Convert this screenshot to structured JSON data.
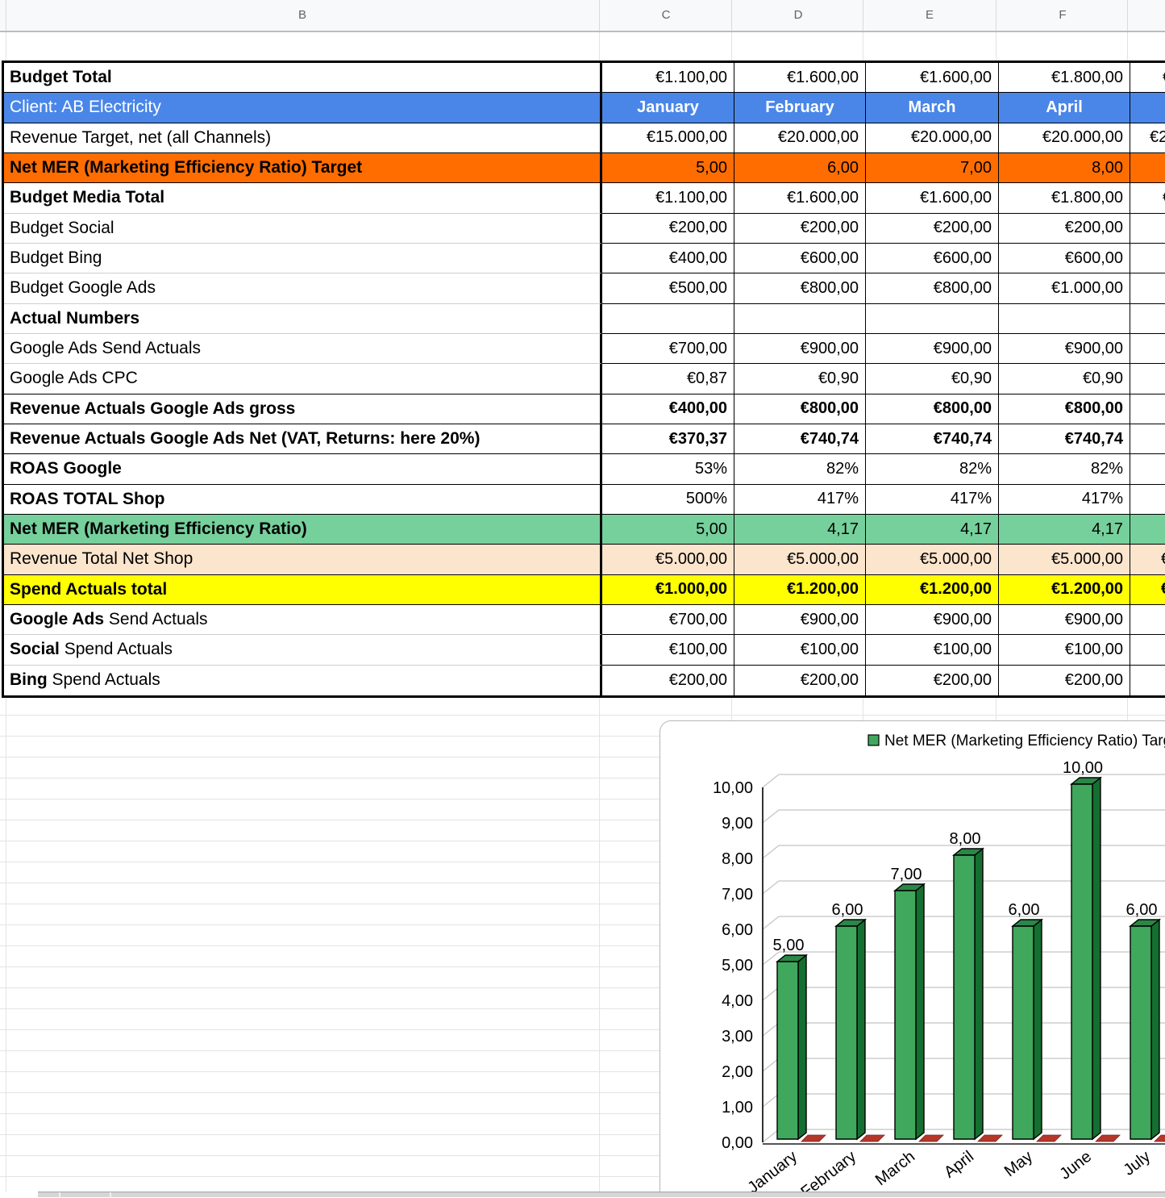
{
  "app": {
    "type": "spreadsheet"
  },
  "columns": {
    "letters": [
      "B",
      "C",
      "D",
      "E",
      "F"
    ]
  },
  "colors": {
    "header_blue": "#4a86e8",
    "highlight_orange": "#ff6d01",
    "highlight_green": "#76d09c",
    "highlight_peach": "#fce5cd",
    "highlight_yellow": "#ffff00",
    "bar_front": "#3fa85c",
    "bar_side": "#156f31",
    "bar_top": "#2a8747",
    "marker_red": "#b5372a"
  },
  "table": {
    "rows": [
      {
        "label": [
          {
            "t": "Budget Total",
            "b": true
          }
        ],
        "fill": "#ffffff",
        "tcolor": "#000000",
        "values": [
          "€1.100,00",
          "€1.600,00",
          "€1.600,00",
          "€1.800,00"
        ],
        "vbold": false,
        "center": false,
        "g": "€",
        "gpad": 40,
        "lb": "k"
      },
      {
        "label": [
          {
            "t": "Client: AB Electricity",
            "b": false
          }
        ],
        "fill": "#4a86e8",
        "tcolor": "#ffffff",
        "values": [
          "January",
          "February",
          "March",
          "April"
        ],
        "vbold": true,
        "center": true,
        "g": "",
        "gpad": 0,
        "lb": "k"
      },
      {
        "label": [
          {
            "t": "Revenue Target, net (all Channels)",
            "b": false
          }
        ],
        "fill": "#ffffff",
        "tcolor": "#000000",
        "values": [
          "€15.000,00",
          "€20.000,00",
          "€20.000,00",
          "€20.000,00"
        ],
        "vbold": false,
        "center": false,
        "g": "€2",
        "gpad": 24,
        "lb": "k"
      },
      {
        "label": [
          {
            "t": "Net MER (Marketing Efficiency Ratio) Target",
            "b": true
          }
        ],
        "fill": "#ff6d01",
        "tcolor": "#000000",
        "values": [
          "5,00",
          "6,00",
          "7,00",
          "8,00"
        ],
        "vbold": false,
        "center": false,
        "g": "",
        "gpad": 0,
        "lb": "k"
      },
      {
        "label": [
          {
            "t": "Budget Media Total",
            "b": true
          }
        ],
        "fill": "#ffffff",
        "tcolor": "#000000",
        "values": [
          "€1.100,00",
          "€1.600,00",
          "€1.600,00",
          "€1.800,00"
        ],
        "vbold": false,
        "center": false,
        "g": "€",
        "gpad": 40,
        "lb": "g"
      },
      {
        "label": [
          {
            "t": "Budget Social",
            "b": false
          }
        ],
        "fill": "#ffffff",
        "tcolor": "#000000",
        "values": [
          "€200,00",
          "€200,00",
          "€200,00",
          "€200,00"
        ],
        "vbold": false,
        "center": false,
        "g": "",
        "gpad": 0,
        "lb": "g"
      },
      {
        "label": [
          {
            "t": "Budget Bing",
            "b": false
          }
        ],
        "fill": "#ffffff",
        "tcolor": "#000000",
        "values": [
          "€400,00",
          "€600,00",
          "€600,00",
          "€600,00"
        ],
        "vbold": false,
        "center": false,
        "g": "",
        "gpad": 0,
        "lb": "g"
      },
      {
        "label": [
          {
            "t": "Budget Google Ads",
            "b": false
          }
        ],
        "fill": "#ffffff",
        "tcolor": "#000000",
        "values": [
          "€500,00",
          "€800,00",
          "€800,00",
          "€1.000,00"
        ],
        "vbold": false,
        "center": false,
        "g": "",
        "gpad": 0,
        "lb": "g"
      },
      {
        "label": [
          {
            "t": "Actual Numbers",
            "b": true
          }
        ],
        "fill": "#ffffff",
        "tcolor": "#000000",
        "values": [
          "",
          "",
          "",
          ""
        ],
        "vbold": false,
        "center": false,
        "g": "",
        "gpad": 0,
        "lb": "g"
      },
      {
        "label": [
          {
            "t": "Google Ads Send Actuals",
            "b": false
          }
        ],
        "fill": "#ffffff",
        "tcolor": "#000000",
        "values": [
          "€700,00",
          "€900,00",
          "€900,00",
          "€900,00"
        ],
        "vbold": false,
        "center": false,
        "g": "",
        "gpad": 0,
        "lb": "g"
      },
      {
        "label": [
          {
            "t": "Google Ads CPC",
            "b": false
          }
        ],
        "fill": "#ffffff",
        "tcolor": "#000000",
        "values": [
          "€0,87",
          "€0,90",
          "€0,90",
          "€0,90"
        ],
        "vbold": false,
        "center": false,
        "g": "",
        "gpad": 0,
        "lb": "k"
      },
      {
        "label": [
          {
            "t": "Revenue Actuals Google Ads gross",
            "b": true
          }
        ],
        "fill": "#ffffff",
        "tcolor": "#000000",
        "values": [
          "€400,00",
          "€800,00",
          "€800,00",
          "€800,00"
        ],
        "vbold": true,
        "center": false,
        "g": "",
        "gpad": 0,
        "lb": "k"
      },
      {
        "label": [
          {
            "t": "Revenue Actuals Google Ads Net (VAT, Returns: here 20%)",
            "b": true
          }
        ],
        "fill": "#ffffff",
        "tcolor": "#000000",
        "values": [
          "€370,37",
          "€740,74",
          "€740,74",
          "€740,74"
        ],
        "vbold": true,
        "center": false,
        "g": "",
        "gpad": 0,
        "lb": "k"
      },
      {
        "label": [
          {
            "t": "ROAS Google",
            "b": true
          }
        ],
        "fill": "#ffffff",
        "tcolor": "#000000",
        "values": [
          "53%",
          "82%",
          "82%",
          "82%"
        ],
        "vbold": false,
        "center": false,
        "g": "",
        "gpad": 0,
        "lb": "k"
      },
      {
        "label": [
          {
            "t": "ROAS TOTAL Shop",
            "b": true
          }
        ],
        "fill": "#ffffff",
        "tcolor": "#000000",
        "values": [
          "500%",
          "417%",
          "417%",
          "417%"
        ],
        "vbold": false,
        "center": false,
        "g": "",
        "gpad": 0,
        "lb": "k"
      },
      {
        "label": [
          {
            "t": "Net MER (Marketing Efficiency Ratio)",
            "b": true
          }
        ],
        "fill": "#76d09c",
        "tcolor": "#000000",
        "values": [
          "5,00",
          "4,17",
          "4,17",
          "4,17"
        ],
        "vbold": false,
        "center": false,
        "g": "",
        "gpad": 0,
        "lb": "k"
      },
      {
        "label": [
          {
            "t": "Revenue Total Net Shop",
            "b": false
          }
        ],
        "fill": "#fce5cd",
        "tcolor": "#000000",
        "values": [
          "€5.000,00",
          "€5.000,00",
          "€5.000,00",
          "€5.000,00"
        ],
        "vbold": false,
        "center": false,
        "g": "€",
        "gpad": 38,
        "lb": "k"
      },
      {
        "label": [
          {
            "t": "Spend Actuals total",
            "b": true
          }
        ],
        "fill": "#ffff00",
        "tcolor": "#000000",
        "values": [
          "€1.000,00",
          "€1.200,00",
          "€1.200,00",
          "€1.200,00"
        ],
        "vbold": true,
        "center": false,
        "g": "€",
        "gpad": 38,
        "lb": "k"
      },
      {
        "label": [
          {
            "t": "Google Ads",
            "b": true
          },
          {
            "t": " Send Actuals",
            "b": false
          }
        ],
        "fill": "#ffffff",
        "tcolor": "#000000",
        "values": [
          "€700,00",
          "€900,00",
          "€900,00",
          "€900,00"
        ],
        "vbold": false,
        "center": false,
        "g": "",
        "gpad": 0,
        "lb": "g"
      },
      {
        "label": [
          {
            "t": "Social",
            "b": true
          },
          {
            "t": " Spend Actuals",
            "b": false
          }
        ],
        "fill": "#ffffff",
        "tcolor": "#000000",
        "values": [
          "€100,00",
          "€100,00",
          "€100,00",
          "€100,00"
        ],
        "vbold": false,
        "center": false,
        "g": "",
        "gpad": 0,
        "lb": "g"
      },
      {
        "label": [
          {
            "t": "Bing",
            "b": true
          },
          {
            "t": " Spend Actuals",
            "b": false
          }
        ],
        "fill": "#ffffff",
        "tcolor": "#000000",
        "values": [
          "€200,00",
          "€200,00",
          "€200,00",
          "€200,00"
        ],
        "vbold": false,
        "center": false,
        "g": "",
        "gpad": 0,
        "lb": "n"
      }
    ]
  },
  "chart_data": {
    "type": "bar",
    "style": "3d",
    "title": "",
    "legend": [
      "Net MER (Marketing Efficiency Ratio) Targ"
    ],
    "legend_position": "top",
    "categories": [
      "January",
      "February",
      "March",
      "April",
      "May",
      "June",
      "July"
    ],
    "series": [
      {
        "name": "Net MER (Marketing Efficiency Ratio) Target",
        "values": [
          5.0,
          6.0,
          7.0,
          8.0,
          6.0,
          10.0,
          6.0
        ],
        "labels": [
          "5,00",
          "6,00",
          "7,00",
          "8,00",
          "6,00",
          "10,00",
          "6,00"
        ],
        "color": "#3fa85c"
      }
    ],
    "has_flat_red_marker_series": true,
    "ylim": [
      0,
      10
    ],
    "yticks": [
      "0,00",
      "1,00",
      "2,00",
      "3,00",
      "4,00",
      "5,00",
      "6,00",
      "7,00",
      "8,00",
      "9,00",
      "10,00"
    ],
    "grid": true
  }
}
